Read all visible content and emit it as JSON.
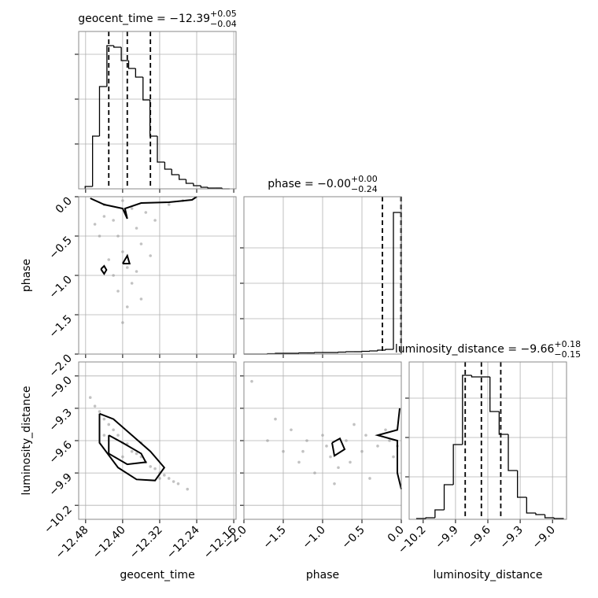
{
  "chart_data": [
    {
      "type": "hist",
      "title": "geocent_time = −12.39",
      "title_sup": "+0.05",
      "title_sub": "−0.04",
      "bins": [
        -12.481,
        -12.465,
        -12.45,
        -12.434,
        -12.419,
        -12.403,
        -12.387,
        -12.372,
        -12.356,
        -12.341,
        -12.325,
        -12.309,
        -12.294,
        -12.278,
        -12.263,
        -12.247,
        -12.231,
        -12.216,
        -12.2,
        -12.185,
        -12.169
      ],
      "counts": [
        3,
        67,
        130,
        182,
        180,
        163,
        153,
        142,
        113,
        67,
        34,
        25,
        18,
        12,
        7,
        4,
        2,
        1,
        1,
        0
      ],
      "quantiles": [
        -12.43,
        -12.39,
        -12.34
      ],
      "xlim": [
        -12.495,
        -12.155
      ],
      "ylim": [
        0,
        200
      ],
      "xticks": [
        -12.48,
        -12.4,
        -12.32,
        -12.24,
        -12.16
      ],
      "yticks": [
        57,
        114,
        171
      ],
      "grid": true
    },
    {
      "type": "scatter",
      "ylabel": "phase",
      "x": [
        -12.44,
        -12.42,
        -12.41,
        -12.4,
        -12.39,
        -12.38,
        -12.37,
        -12.36,
        -12.43,
        -12.45,
        -12.35,
        -12.33,
        -12.41,
        -12.39,
        -12.37,
        -12.42,
        -12.4,
        -12.38,
        -12.44,
        -12.36,
        -12.3,
        -12.27,
        -12.46,
        -12.34,
        -12.4
      ],
      "y": [
        -0.1,
        -0.3,
        -0.5,
        -0.7,
        -0.9,
        -1.1,
        -0.4,
        -0.6,
        -0.8,
        -0.5,
        -0.2,
        -0.3,
        -1.2,
        -1.4,
        -0.95,
        -1.0,
        -0.05,
        -0.15,
        -0.25,
        -1.3,
        -0.1,
        -0.05,
        -0.35,
        -0.75,
        -1.6
      ],
      "contours": [
        {
          "x": [
            -12.47,
            -12.44,
            -12.4,
            -12.39,
            -12.395,
            -12.36,
            -12.3,
            -12.25,
            -12.24
          ],
          "y": [
            -0.02,
            -0.1,
            -0.15,
            -0.28,
            -0.15,
            -0.08,
            -0.07,
            -0.04,
            0.0
          ]
        },
        {
          "x": [
            -12.4,
            -12.39,
            -12.385,
            -12.4
          ],
          "y": [
            -0.85,
            -0.75,
            -0.85,
            -0.85
          ]
        },
        {
          "x": [
            -12.447,
            -12.44,
            -12.435,
            -12.44,
            -12.447
          ],
          "y": [
            -0.92,
            -0.88,
            -0.93,
            -0.98,
            -0.92
          ]
        }
      ],
      "xlim": [
        -12.495,
        -12.155
      ],
      "ylim": [
        -2.0,
        0.0
      ],
      "xticks": [
        -12.48,
        -12.4,
        -12.32,
        -12.24,
        -12.16
      ],
      "yticks": [
        {
          "value": -2.0,
          "label": "−2.0"
        },
        {
          "value": -1.5,
          "label": "−1.5"
        },
        {
          "value": -1.0,
          "label": "−1.0"
        },
        {
          "value": -0.5,
          "label": "−0.5"
        },
        {
          "value": 0.0,
          "label": "0.0"
        }
      ],
      "grid": true
    },
    {
      "type": "hist",
      "title": "phase = −0.00",
      "title_sup": "+0.00",
      "title_sub": "−0.24",
      "bins": [
        -2.0,
        -1.9,
        -1.8,
        -1.7,
        -1.6,
        -1.5,
        -1.4,
        -1.3,
        -1.2,
        -1.1,
        -1.0,
        -0.9,
        -0.8,
        -0.7,
        -0.6,
        -0.5,
        -0.4,
        -0.3,
        -0.2,
        -0.1,
        0.0
      ],
      "counts": [
        0,
        0,
        0,
        0.5,
        1,
        1,
        1,
        1.5,
        1.5,
        2,
        2,
        2,
        2.5,
        3,
        3,
        3.5,
        4,
        5,
        6,
        180
      ],
      "quantiles": [
        -0.24,
        -0.005,
        0.0
      ],
      "xlim": [
        -2.0,
        0.0
      ],
      "ylim": [
        0,
        200
      ],
      "xticks": [
        -1.5,
        -1.0,
        -0.5
      ],
      "yticks": [
        45,
        90,
        135
      ],
      "grid": true
    },
    {
      "type": "scatter",
      "ylabel": "luminosity_distance",
      "xlabel": "geocent_time",
      "x": [
        -12.47,
        -12.46,
        -12.45,
        -12.44,
        -12.43,
        -12.42,
        -12.41,
        -12.4,
        -12.39,
        -12.38,
        -12.37,
        -12.36,
        -12.35,
        -12.34,
        -12.33,
        -12.32,
        -12.31,
        -12.3,
        -12.29,
        -12.28,
        -12.44,
        -12.4,
        -12.36,
        -12.32,
        -12.26
      ],
      "y": [
        -9.2,
        -9.28,
        -9.33,
        -9.4,
        -9.45,
        -9.5,
        -9.55,
        -9.62,
        -9.63,
        -9.7,
        -9.72,
        -9.75,
        -9.8,
        -9.84,
        -9.86,
        -9.9,
        -9.92,
        -9.95,
        -9.98,
        -10.0,
        -9.55,
        -9.75,
        -9.62,
        -9.95,
        -10.05
      ],
      "contours": [
        {
          "x": [
            -12.45,
            -12.42,
            -12.38,
            -12.34,
            -12.31,
            -12.33,
            -12.37,
            -12.41,
            -12.45,
            -12.45
          ],
          "y": [
            -9.35,
            -9.4,
            -9.55,
            -9.7,
            -9.85,
            -9.97,
            -9.96,
            -9.85,
            -9.62,
            -9.35
          ]
        },
        {
          "x": [
            -12.43,
            -12.4,
            -12.36,
            -12.35,
            -12.39,
            -12.43,
            -12.43
          ],
          "y": [
            -9.55,
            -9.62,
            -9.72,
            -9.8,
            -9.82,
            -9.72,
            -9.55
          ]
        }
      ],
      "xlim": [
        -12.495,
        -12.155
      ],
      "ylim": [
        -10.33,
        -8.87
      ],
      "xticks": [
        {
          "value": -12.48,
          "label": "−12.48"
        },
        {
          "value": -12.4,
          "label": "−12.40"
        },
        {
          "value": -12.32,
          "label": "−12.32"
        },
        {
          "value": -12.24,
          "label": "−12.24"
        },
        {
          "value": -12.16,
          "label": "−12.16"
        }
      ],
      "yticks": [
        {
          "value": -10.2,
          "label": "−10.2"
        },
        {
          "value": -9.9,
          "label": "−9.9"
        },
        {
          "value": -9.6,
          "label": "−9.6"
        },
        {
          "value": -9.3,
          "label": "−9.3"
        },
        {
          "value": -9.0,
          "label": "−9.0"
        }
      ],
      "grid": true
    },
    {
      "type": "scatter",
      "xlabel": "phase",
      "x": [
        -1.9,
        -1.7,
        -1.5,
        -1.4,
        -1.3,
        -1.2,
        -1.1,
        -1.0,
        -0.9,
        -0.8,
        -0.7,
        -0.6,
        -0.5,
        -0.4,
        -0.3,
        -0.2,
        -0.1,
        -0.05,
        -1.6,
        -1.25,
        -0.95,
        -0.65,
        -0.45,
        -0.15,
        -0.85
      ],
      "y": [
        -9.05,
        -9.6,
        -9.7,
        -9.5,
        -9.8,
        -9.6,
        -9.9,
        -9.55,
        -9.75,
        -9.85,
        -9.6,
        -9.45,
        -9.7,
        -9.95,
        -9.65,
        -9.5,
        -9.75,
        -9.65,
        -9.4,
        -9.7,
        -9.65,
        -9.8,
        -9.55,
        -9.6,
        -10.0
      ],
      "contours": [
        {
          "x": [
            -0.02,
            -0.05,
            -0.3,
            -0.05,
            -0.05,
            0.0
          ],
          "y": [
            -9.3,
            -9.5,
            -9.55,
            -9.6,
            -9.9,
            -10.05
          ]
        },
        {
          "x": [
            -0.88,
            -0.78,
            -0.72,
            -0.85,
            -0.88
          ],
          "y": [
            -9.62,
            -9.58,
            -9.68,
            -9.74,
            -9.62
          ]
        }
      ],
      "xlim": [
        -2.0,
        0.0
      ],
      "ylim": [
        -10.33,
        -8.87
      ],
      "xticks": [
        {
          "value": -2.0,
          "label": "−2.0"
        },
        {
          "value": -1.5,
          "label": "−1.5"
        },
        {
          "value": -1.0,
          "label": "−1.0"
        },
        {
          "value": -0.5,
          "label": "−0.5"
        },
        {
          "value": 0.0,
          "label": "0.0"
        }
      ],
      "yticks": [
        -10.2,
        -9.9,
        -9.6,
        -9.3,
        -9.0
      ],
      "grid": true
    },
    {
      "type": "hist",
      "title": "luminosity_distance = −9.66",
      "title_sup": "+0.18",
      "title_sub": "−0.15",
      "xlabel": "luminosity_distance",
      "bins": [
        -10.26,
        -10.175,
        -10.09,
        -10.005,
        -9.92,
        -9.835,
        -9.75,
        -9.665,
        -9.58,
        -9.495,
        -9.41,
        -9.325,
        -9.24,
        -9.155,
        -9.07,
        -8.985,
        -8.9
      ],
      "counts": [
        1,
        2,
        12,
        44,
        95,
        183,
        181,
        181,
        137,
        108,
        62,
        28,
        8,
        6,
        2,
        1
      ],
      "quantiles": [
        -9.81,
        -9.66,
        -9.48
      ],
      "xlim": [
        -10.33,
        -8.87
      ],
      "ylim": [
        0,
        200
      ],
      "xticks": [
        {
          "value": -10.2,
          "label": "−10.2"
        },
        {
          "value": -9.9,
          "label": "−9.9"
        },
        {
          "value": -9.6,
          "label": "−9.6"
        },
        {
          "value": -9.3,
          "label": "−9.3"
        },
        {
          "value": -9.0,
          "label": "−9.0"
        }
      ],
      "yticks": [
        54,
        104,
        154
      ],
      "grid": true
    }
  ]
}
